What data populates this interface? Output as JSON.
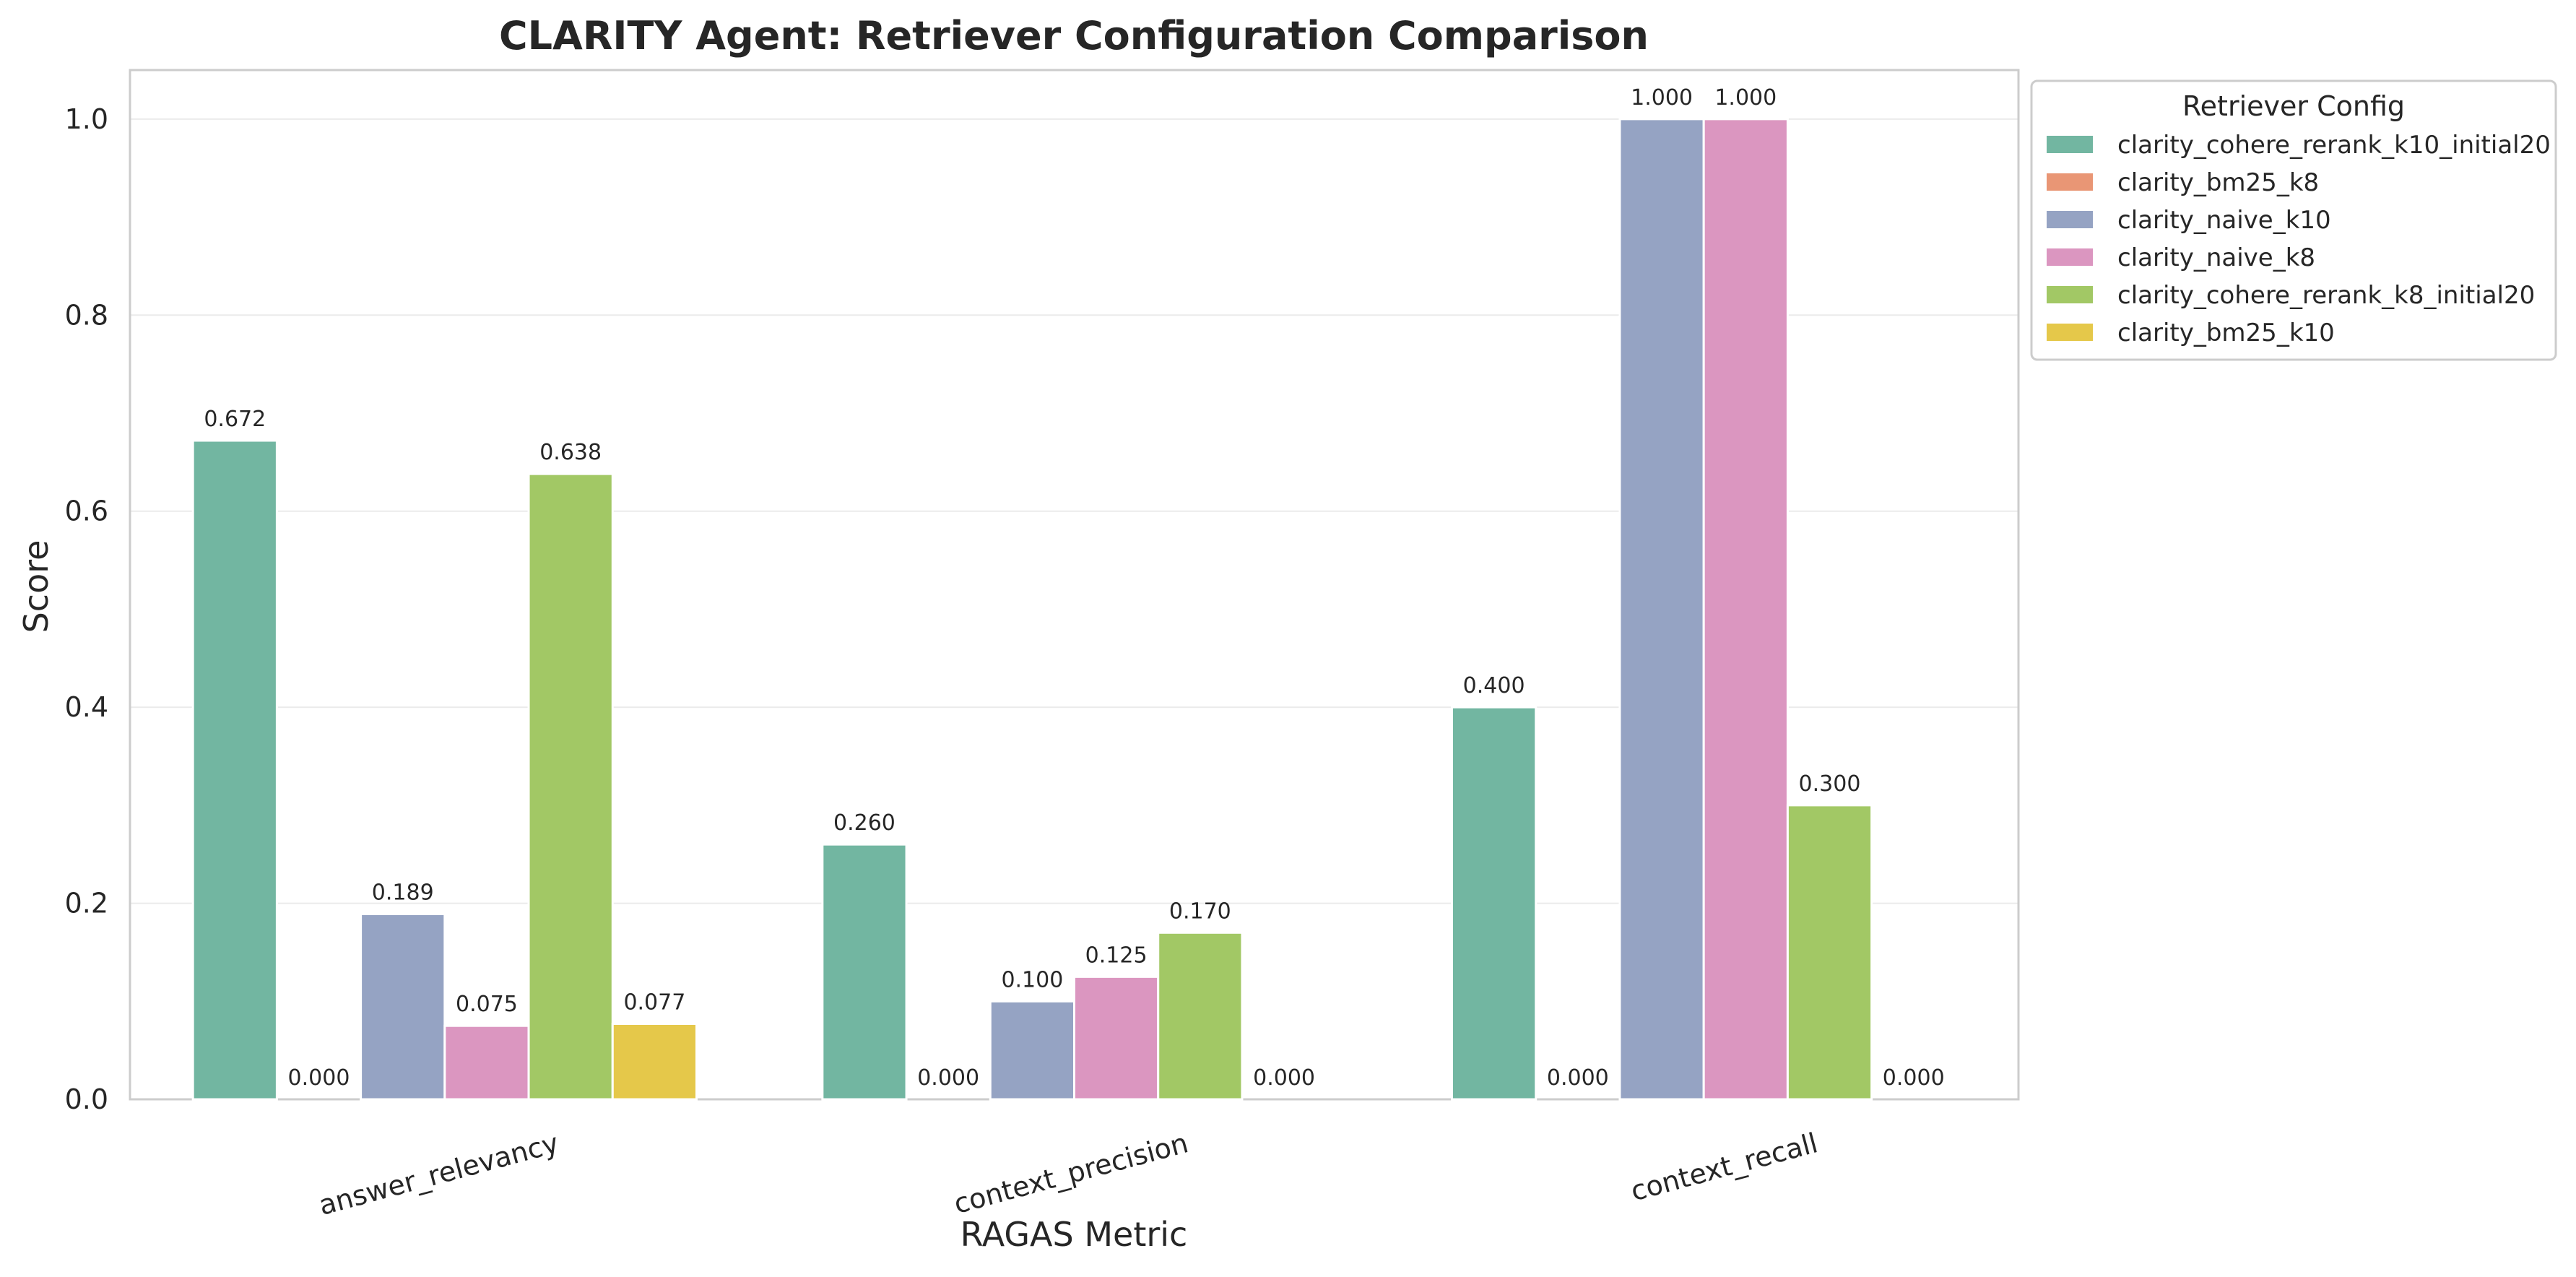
{
  "chart_data": {
    "type": "bar",
    "title": "CLARITY Agent: Retriever Configuration Comparison",
    "xlabel": "RAGAS Metric",
    "ylabel": "Score",
    "ylim": [
      0,
      1.05
    ],
    "yticks": [
      "0.0",
      "0.2",
      "0.4",
      "0.6",
      "0.8",
      "1.0"
    ],
    "grid": true,
    "legend_title": "Retriever Config",
    "legend_position": "outside-right-top",
    "categories": [
      "answer_relevancy",
      "context_precision",
      "context_recall"
    ],
    "series": [
      {
        "name": "clarity_cohere_rerank_k10_initial20",
        "color": "#72b6a1",
        "values": [
          0.672,
          0.26,
          0.4
        ],
        "labels": [
          "0.672",
          "0.260",
          "0.400"
        ]
      },
      {
        "name": "clarity_bm25_k8",
        "color": "#e99675",
        "values": [
          0.0,
          0.0,
          0.0
        ],
        "labels": [
          "0.000",
          "0.000",
          "0.000"
        ]
      },
      {
        "name": "clarity_naive_k10",
        "color": "#95a3c3",
        "values": [
          0.189,
          0.1,
          1.0
        ],
        "labels": [
          "0.189",
          "0.100",
          "1.000"
        ]
      },
      {
        "name": "clarity_naive_k8",
        "color": "#db96c0",
        "values": [
          0.075,
          0.125,
          1.0
        ],
        "labels": [
          "0.075",
          "0.125",
          "1.000"
        ]
      },
      {
        "name": "clarity_cohere_rerank_k8_initial20",
        "color": "#a2c865",
        "values": [
          0.638,
          0.17,
          0.3
        ],
        "labels": [
          "0.638",
          "0.170",
          "0.300"
        ]
      },
      {
        "name": "clarity_bm25_k10",
        "color": "#e5c84a",
        "values": [
          0.077,
          0.0,
          0.0
        ],
        "labels": [
          "0.077",
          "0.000",
          "0.000"
        ]
      }
    ]
  }
}
